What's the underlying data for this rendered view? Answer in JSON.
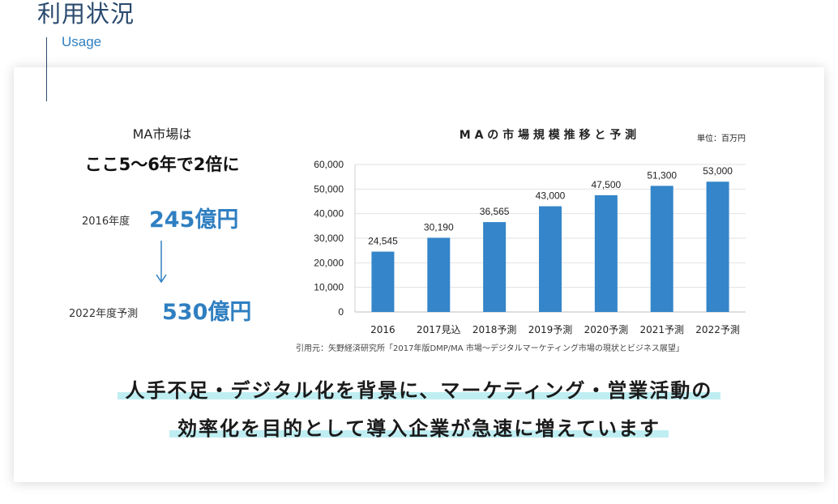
{
  "header": {
    "title": "利用状況",
    "subtitle": "Usage"
  },
  "summary": {
    "line1": "MA市場は",
    "line2": "ここ5〜6年で2倍に",
    "from_label": "2016年度",
    "from_value": "245億円",
    "to_label": "2022年度予測",
    "to_value": "530億円"
  },
  "chart_data": {
    "type": "bar",
    "title": "M A の 市 場 規 模 推 移 と 予 測",
    "unit": "単位：百万円",
    "categories": [
      "2016",
      "2017見込",
      "2018予測",
      "2019予測",
      "2020予測",
      "2021予測",
      "2022予測"
    ],
    "values": [
      24545,
      30190,
      36565,
      43000,
      47500,
      51300,
      53000
    ],
    "value_labels": [
      "24,545",
      "30,190",
      "36,565",
      "43,000",
      "47,500",
      "51,300",
      "53,000"
    ],
    "yticks": [
      0,
      10000,
      20000,
      30000,
      40000,
      50000,
      60000
    ],
    "ytick_labels": [
      "0",
      "10,000",
      "20,000",
      "30,000",
      "40,000",
      "50,000",
      "60,000"
    ],
    "ylim": [
      0,
      60000
    ],
    "bar_color": "#3485c9",
    "grid": true
  },
  "source": "引用元：矢野経済研究所「2017年版DMP/MA 市場〜デジタルマーケティング市場の現状とビジネス展望」",
  "message": {
    "line1": "人手不足・デジタル化を背景に、マーケティング・営業活動の",
    "line2": "効率化を目的として導入企業が急速に増えています"
  }
}
